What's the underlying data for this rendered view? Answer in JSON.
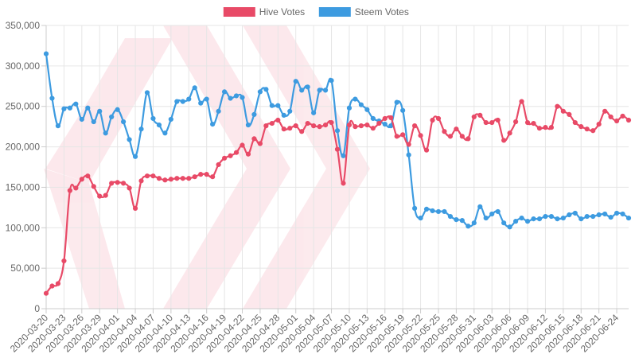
{
  "chart_data": {
    "type": "line",
    "ylim": [
      0,
      350000
    ],
    "y_ticks": [
      "0",
      "50,000",
      "100,000",
      "150,000",
      "200,000",
      "250,000",
      "300,000",
      "350,000"
    ],
    "y_tick_values": [
      0,
      50000,
      100000,
      150000,
      200000,
      250000,
      300000,
      350000
    ],
    "grid": true,
    "legend_position": "top-center",
    "x_tick_labels": [
      "2020-03-20",
      "2020-03-23",
      "2020-03-26",
      "2020-03-29",
      "2020-04-01",
      "2020-04-04",
      "2020-04-07",
      "2020-04-10",
      "2020-04-13",
      "2020-04-16",
      "2020-04-19",
      "2020-04-22",
      "2020-04-25",
      "2020-04-28",
      "2020-05-01",
      "2020-05-04",
      "2020-05-07",
      "2020-05-10",
      "2020-05-13",
      "2020-05-16",
      "2020-05-19",
      "2020-05-22",
      "2020-05-25",
      "2020-05-28",
      "2020-05-31",
      "2020-06-03",
      "2020-06-06",
      "2020-06-09",
      "2020-06-12",
      "2020-06-15",
      "2020-06-18",
      "2020-06-21",
      "2020-06-24"
    ],
    "x_start": "2020-03-20",
    "x_end": "2020-06-26",
    "series": [
      {
        "name": "Hive Votes",
        "color": "#e84a67",
        "values": [
          19000,
          28000,
          31000,
          59000,
          146000,
          149000,
          160000,
          164000,
          151000,
          139000,
          140000,
          155000,
          156000,
          155000,
          149000,
          124000,
          158000,
          164000,
          164000,
          161000,
          159000,
          160000,
          161000,
          161000,
          161000,
          163000,
          166000,
          166000,
          163000,
          178000,
          186000,
          189000,
          193000,
          202000,
          191000,
          210000,
          204000,
          226000,
          229000,
          233000,
          222000,
          223000,
          226000,
          219000,
          229000,
          226000,
          225000,
          227000,
          230000,
          197000,
          155000,
          227000,
          225000,
          226000,
          227000,
          223000,
          229000,
          235000,
          236000,
          213000,
          215000,
          203000,
          226000,
          214000,
          196000,
          233000,
          235000,
          219000,
          213000,
          222000,
          213000,
          210000,
          237000,
          239000,
          230000,
          230000,
          233000,
          208000,
          217000,
          231000,
          256000,
          230000,
          229000,
          223000,
          224000,
          224000,
          250000,
          244000,
          240000,
          230000,
          225000,
          222000,
          220000,
          228000,
          244000,
          237000,
          232000,
          238000,
          233000
        ]
      },
      {
        "name": "Steem Votes",
        "color": "#3d9be0",
        "values": [
          315000,
          260000,
          226000,
          247000,
          248000,
          253000,
          234000,
          248000,
          231000,
          244000,
          217000,
          237000,
          246000,
          231000,
          209000,
          188000,
          222000,
          267000,
          235000,
          227000,
          217000,
          234000,
          256000,
          256000,
          259000,
          273000,
          254000,
          259000,
          228000,
          244000,
          268000,
          260000,
          263000,
          261000,
          227000,
          240000,
          268000,
          271000,
          251000,
          251000,
          239000,
          244000,
          281000,
          270000,
          274000,
          242000,
          270000,
          270000,
          282000,
          220000,
          189000,
          248000,
          259000,
          252000,
          246000,
          235000,
          232000,
          228000,
          226000,
          255000,
          245000,
          190000,
          124000,
          112000,
          123000,
          121000,
          120000,
          120000,
          114000,
          110000,
          109000,
          102000,
          106000,
          126000,
          112000,
          117000,
          120000,
          106000,
          101000,
          108000,
          112000,
          108000,
          111000,
          111000,
          114000,
          114000,
          111000,
          112000,
          116000,
          118000,
          111000,
          114000,
          114000,
          116000,
          117000,
          113000,
          118000,
          117000,
          112000
        ]
      }
    ]
  }
}
